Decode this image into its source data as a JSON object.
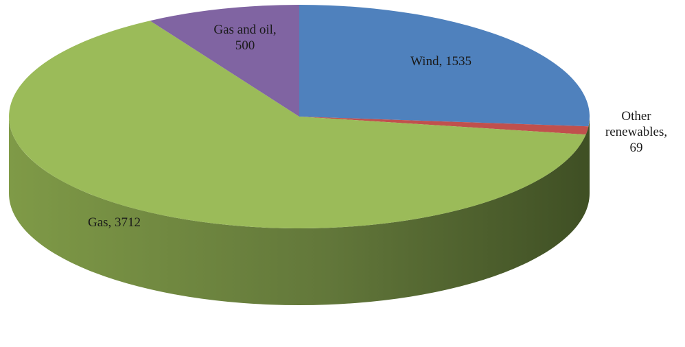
{
  "chart_data": {
    "type": "pie",
    "style": "3d",
    "title": "",
    "series": [
      {
        "slices": [
          {
            "label": "Wind",
            "value": 1535,
            "color": "#4f81bd"
          },
          {
            "label": "Other renewables",
            "value": 69,
            "color": "#c0504d"
          },
          {
            "label": "Gas",
            "value": 3712,
            "color": "#9bbb59"
          },
          {
            "label": "Gas and oil",
            "value": 500,
            "color": "#8064a2"
          }
        ]
      }
    ],
    "data_labels": {
      "wind": "Wind, 1535",
      "other_l1": "Other",
      "other_l2": "renewables,",
      "other_l3": "69",
      "gas": "Gas, 3712",
      "gasoil_l1": "Gas and oil,",
      "gasoil_l2": "500"
    },
    "legend": "none"
  }
}
